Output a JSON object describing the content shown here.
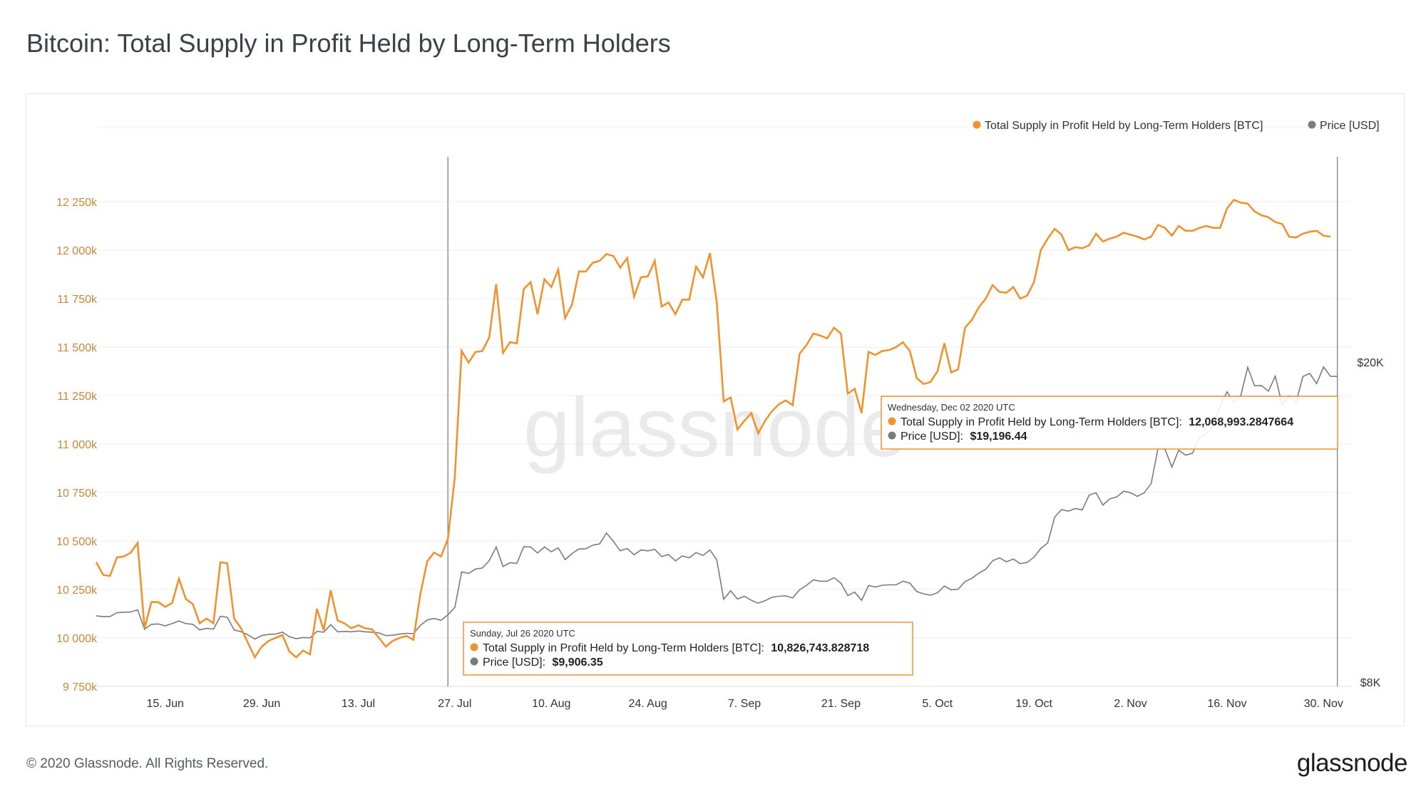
{
  "page": {
    "title": "Bitcoin: Total Supply in Profit Held by Long-Term Holders",
    "copyright": "© 2020 Glassnode. All Rights Reserved.",
    "logo_text": "glassnode",
    "watermark": "glassnode"
  },
  "colors": {
    "supply": "#f0922e",
    "price": "#7b7b7b",
    "left_axis_text": "#c8883a",
    "grid": "#ececec"
  },
  "chart_data": {
    "type": "line",
    "title": "Bitcoin: Total Supply in Profit Held by Long-Term Holders",
    "x_start": "2020-06-05",
    "x_end": "2020-12-04",
    "x_ticks": [
      {
        "date": "2020-06-15",
        "label": "15. Jun"
      },
      {
        "date": "2020-06-29",
        "label": "29. Jun"
      },
      {
        "date": "2020-07-13",
        "label": "13. Jul"
      },
      {
        "date": "2020-07-27",
        "label": "27. Jul"
      },
      {
        "date": "2020-08-10",
        "label": "10. Aug"
      },
      {
        "date": "2020-08-24",
        "label": "24. Aug"
      },
      {
        "date": "2020-09-07",
        "label": "7. Sep"
      },
      {
        "date": "2020-09-21",
        "label": "21. Sep"
      },
      {
        "date": "2020-10-05",
        "label": "5. Oct"
      },
      {
        "date": "2020-10-19",
        "label": "19. Oct"
      },
      {
        "date": "2020-11-02",
        "label": "2. Nov"
      },
      {
        "date": "2020-11-16",
        "label": "16. Nov"
      },
      {
        "date": "2020-11-30",
        "label": "30. Nov"
      }
    ],
    "y_left": {
      "ylim": [
        9750,
        12250
      ],
      "ticks": [
        9750,
        10000,
        10250,
        10500,
        10750,
        11000,
        11250,
        11500,
        11750,
        12000,
        12250
      ],
      "tick_labels": [
        "9 750k",
        "10 000k",
        "10 250k",
        "10 500k",
        "10 750k",
        "11 000k",
        "11 250k",
        "11 500k",
        "11 750k",
        "12 000k",
        "12 250k"
      ]
    },
    "y_right": {
      "scale": "log",
      "ylim": [
        8000,
        20000
      ],
      "ticks": [
        8000,
        20000
      ],
      "tick_labels": [
        "$8K",
        "$20K"
      ]
    },
    "legend": {
      "placement": "top-right",
      "items": [
        "Total Supply in Profit Held by Long-Term Holders [BTC]",
        "Price [USD]"
      ]
    },
    "series": [
      {
        "name": "Total Supply in Profit Held by Long-Term Holders [BTC]",
        "axis": "left",
        "start_date": "2020-06-05",
        "values": [
          10390,
          10325,
          10320,
          10415,
          10420,
          10440,
          10490,
          10050,
          10185,
          10185,
          10160,
          10180,
          10305,
          10200,
          10175,
          10075,
          10100,
          10075,
          10390,
          10385,
          10100,
          10050,
          9975,
          9900,
          9955,
          9985,
          10000,
          10015,
          9930,
          9900,
          9935,
          9915,
          10150,
          10040,
          10245,
          10090,
          10075,
          10050,
          10065,
          10050,
          10045,
          10000,
          9955,
          9985,
          10000,
          10010,
          9990,
          10225,
          10395,
          10440,
          10420,
          10510,
          10830,
          11480,
          11420,
          11475,
          11480,
          11550,
          11825,
          11470,
          11525,
          11520,
          11800,
          11835,
          11670,
          11850,
          11810,
          11900,
          11650,
          11720,
          11890,
          11890,
          11935,
          11945,
          11980,
          11970,
          11910,
          11960,
          11760,
          11860,
          11865,
          11945,
          11710,
          11730,
          11670,
          11745,
          11745,
          11915,
          11860,
          11985,
          11730,
          11220,
          11240,
          11075,
          11120,
          11160,
          11055,
          11120,
          11170,
          11205,
          11225,
          11200,
          11465,
          11510,
          11570,
          11560,
          11545,
          11600,
          11570,
          11260,
          11285,
          11160,
          11475,
          11460,
          11480,
          11485,
          11500,
          11525,
          11480,
          11340,
          11310,
          11320,
          11375,
          11520,
          11370,
          11385,
          11600,
          11640,
          11705,
          11750,
          11820,
          11785,
          11780,
          11810,
          11750,
          11765,
          11835,
          12000,
          12060,
          12110,
          12080,
          12000,
          12015,
          12010,
          12025,
          12085,
          12045,
          12060,
          12070,
          12090,
          12080,
          12070,
          12055,
          12070,
          12130,
          12115,
          12075,
          12125,
          12100,
          12100,
          12115,
          12125,
          12115,
          12115,
          12215,
          12260,
          12245,
          12240,
          12200,
          12180,
          12170,
          12145,
          12135,
          12070,
          12065,
          12085,
          12095,
          12100,
          12075,
          12070
        ]
      },
      {
        "name": "Price [USD]",
        "axis": "right",
        "start_date": "2020-06-05",
        "values": [
          9670,
          9650,
          9650,
          9760,
          9770,
          9780,
          9840,
          9310,
          9440,
          9450,
          9400,
          9460,
          9530,
          9460,
          9440,
          9290,
          9330,
          9310,
          9660,
          9630,
          9290,
          9240,
          9160,
          9050,
          9140,
          9170,
          9180,
          9230,
          9110,
          9060,
          9090,
          9080,
          9250,
          9230,
          9430,
          9240,
          9250,
          9240,
          9260,
          9240,
          9230,
          9210,
          9140,
          9150,
          9180,
          9200,
          9190,
          9410,
          9560,
          9600,
          9550,
          9700,
          9906,
          10970,
          10920,
          11060,
          11090,
          11330,
          11780,
          11140,
          11260,
          11240,
          11790,
          11780,
          11580,
          11780,
          11620,
          11750,
          11360,
          11560,
          11710,
          11720,
          11840,
          11880,
          12260,
          11970,
          11650,
          11730,
          11520,
          11680,
          11650,
          11700,
          11460,
          11530,
          11320,
          11480,
          11420,
          11590,
          11500,
          11680,
          11350,
          10140,
          10390,
          10150,
          10230,
          10110,
          10030,
          10100,
          10200,
          10230,
          10240,
          10180,
          10420,
          10550,
          10720,
          10680,
          10680,
          10790,
          10620,
          10250,
          10350,
          10110,
          10550,
          10500,
          10560,
          10570,
          10570,
          10680,
          10620,
          10370,
          10300,
          10260,
          10330,
          10530,
          10420,
          10440,
          10670,
          10770,
          10930,
          11050,
          11320,
          11420,
          11290,
          11380,
          11230,
          11270,
          11440,
          11730,
          11920,
          12830,
          13110,
          13050,
          13150,
          13100,
          13660,
          13760,
          13280,
          13520,
          13590,
          13820,
          13760,
          13620,
          13760,
          14130,
          15630,
          15580,
          14810,
          15540,
          15320,
          15410,
          16100,
          16280,
          16650,
          17670,
          18370,
          17830,
          18170,
          19710,
          18690,
          18700,
          18400,
          19210,
          17700,
          18150,
          17800,
          19190,
          19360,
          18800,
          19720,
          19200,
          19196
        ]
      }
    ],
    "tooltips": [
      {
        "date": "Sunday, Jul 26 2020 UTC",
        "supply_label": "Total Supply in Profit Held by Long-Term Holders [BTC]:",
        "supply_value": "10,826,743.828718",
        "price_label": "Price [USD]:",
        "price_value": "$9,906.35"
      },
      {
        "date": "Wednesday, Dec 02 2020 UTC",
        "supply_label": "Total Supply in Profit Held by Long-Term Holders [BTC]:",
        "supply_value": "12,068,993.2847664",
        "price_label": "Price [USD]:",
        "price_value": "$19,196.44"
      }
    ],
    "crosshair_dates": [
      "2020-07-26",
      "2020-12-02"
    ]
  }
}
